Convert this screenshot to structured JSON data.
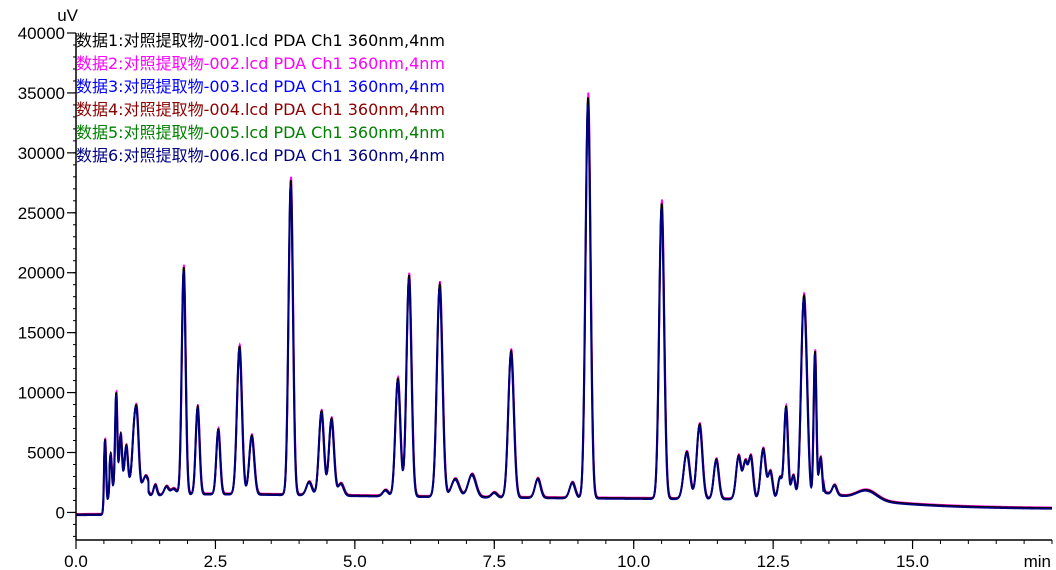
{
  "chart_data": {
    "type": "line",
    "title": "",
    "xlabel": "",
    "ylabel": "",
    "x_unit": "min",
    "y_unit": "uV",
    "xlim": [
      0,
      17.5
    ],
    "ylim": [
      -2300,
      40000
    ],
    "x_ticks": [
      0.0,
      2.5,
      5.0,
      7.5,
      10.0,
      12.5,
      15.0
    ],
    "x_tick_labels": [
      "0.0",
      "2.5",
      "5.0",
      "7.5",
      "10.0",
      "12.5",
      "15.0"
    ],
    "y_ticks": [
      0,
      5000,
      10000,
      15000,
      20000,
      25000,
      30000,
      35000,
      40000
    ],
    "y_tick_labels": [
      "0",
      "5000",
      "10000",
      "15000",
      "20000",
      "25000",
      "30000",
      "35000",
      "40000"
    ],
    "grid": false,
    "legend_position": "top-left",
    "legend": [
      {
        "label": "数据1:对照提取物-001.lcd PDA Ch1 360nm,4nm",
        "color": "#000000"
      },
      {
        "label": "数据2:对照提取物-002.lcd PDA Ch1 360nm,4nm",
        "color": "#ff00ff"
      },
      {
        "label": "数据3:对照提取物-003.lcd PDA Ch1 360nm,4nm",
        "color": "#0000ff"
      },
      {
        "label": "数据4:对照提取物-004.lcd PDA Ch1 360nm,4nm",
        "color": "#8b0000"
      },
      {
        "label": "数据5:对照提取物-005.lcd PDA Ch1 360nm,4nm",
        "color": "#008000"
      },
      {
        "label": "数据6:对照提取物-006.lcd PDA Ch1 360nm,4nm",
        "color": "#000080"
      }
    ],
    "peaks": [
      {
        "rt": 0.52,
        "height": 5200,
        "width": 0.018
      },
      {
        "rt": 0.62,
        "height": 3000,
        "width": 0.02
      },
      {
        "rt": 0.72,
        "height": 8000,
        "width": 0.02
      },
      {
        "rt": 0.8,
        "height": 4500,
        "width": 0.025
      },
      {
        "rt": 0.9,
        "height": 3500,
        "width": 0.03
      },
      {
        "rt": 1.05,
        "height": 5200,
        "width": 0.04
      },
      {
        "rt": 1.1,
        "height": 3500,
        "width": 0.03
      },
      {
        "rt": 1.25,
        "height": 800,
        "width": 0.04
      },
      {
        "rt": 1.42,
        "height": 900,
        "width": 0.03
      },
      {
        "rt": 1.62,
        "height": 700,
        "width": 0.04
      },
      {
        "rt": 1.75,
        "height": 500,
        "width": 0.05
      },
      {
        "rt": 1.93,
        "height": 18900,
        "width": 0.035
      },
      {
        "rt": 2.18,
        "height": 7300,
        "width": 0.035
      },
      {
        "rt": 2.55,
        "height": 5400,
        "width": 0.035
      },
      {
        "rt": 2.93,
        "height": 12300,
        "width": 0.045
      },
      {
        "rt": 3.15,
        "height": 4900,
        "width": 0.045
      },
      {
        "rt": 3.85,
        "height": 26200,
        "width": 0.04
      },
      {
        "rt": 4.18,
        "height": 1100,
        "width": 0.05
      },
      {
        "rt": 4.4,
        "height": 7000,
        "width": 0.045
      },
      {
        "rt": 4.58,
        "height": 6400,
        "width": 0.045
      },
      {
        "rt": 4.75,
        "height": 1000,
        "width": 0.05
      },
      {
        "rt": 5.55,
        "height": 500,
        "width": 0.05
      },
      {
        "rt": 5.77,
        "height": 9800,
        "width": 0.045
      },
      {
        "rt": 5.97,
        "height": 18400,
        "width": 0.045
      },
      {
        "rt": 6.52,
        "height": 17700,
        "width": 0.05
      },
      {
        "rt": 6.8,
        "height": 1500,
        "width": 0.07
      },
      {
        "rt": 7.1,
        "height": 1900,
        "width": 0.07
      },
      {
        "rt": 7.5,
        "height": 400,
        "width": 0.05
      },
      {
        "rt": 7.8,
        "height": 12200,
        "width": 0.05
      },
      {
        "rt": 8.28,
        "height": 1600,
        "width": 0.05
      },
      {
        "rt": 8.9,
        "height": 1300,
        "width": 0.05
      },
      {
        "rt": 9.18,
        "height": 33400,
        "width": 0.045
      },
      {
        "rt": 10.5,
        "height": 24600,
        "width": 0.045
      },
      {
        "rt": 10.95,
        "height": 3900,
        "width": 0.055
      },
      {
        "rt": 11.18,
        "height": 6200,
        "width": 0.05
      },
      {
        "rt": 11.48,
        "height": 3300,
        "width": 0.045
      },
      {
        "rt": 11.88,
        "height": 3600,
        "width": 0.045
      },
      {
        "rt": 12.0,
        "height": 3000,
        "width": 0.04
      },
      {
        "rt": 12.1,
        "height": 3500,
        "width": 0.04
      },
      {
        "rt": 12.32,
        "height": 4200,
        "width": 0.045
      },
      {
        "rt": 12.45,
        "height": 2300,
        "width": 0.04
      },
      {
        "rt": 12.62,
        "height": 1800,
        "width": 0.035
      },
      {
        "rt": 12.73,
        "height": 7700,
        "width": 0.035
      },
      {
        "rt": 12.86,
        "height": 2000,
        "width": 0.035
      },
      {
        "rt": 13.04,
        "height": 14800,
        "width": 0.045
      },
      {
        "rt": 13.1,
        "height": 5500,
        "width": 0.04
      },
      {
        "rt": 13.25,
        "height": 12300,
        "width": 0.025
      },
      {
        "rt": 13.35,
        "height": 3500,
        "width": 0.03
      },
      {
        "rt": 13.6,
        "height": 800,
        "width": 0.04
      },
      {
        "rt": 14.18,
        "height": 800,
        "width": 0.18
      }
    ]
  }
}
